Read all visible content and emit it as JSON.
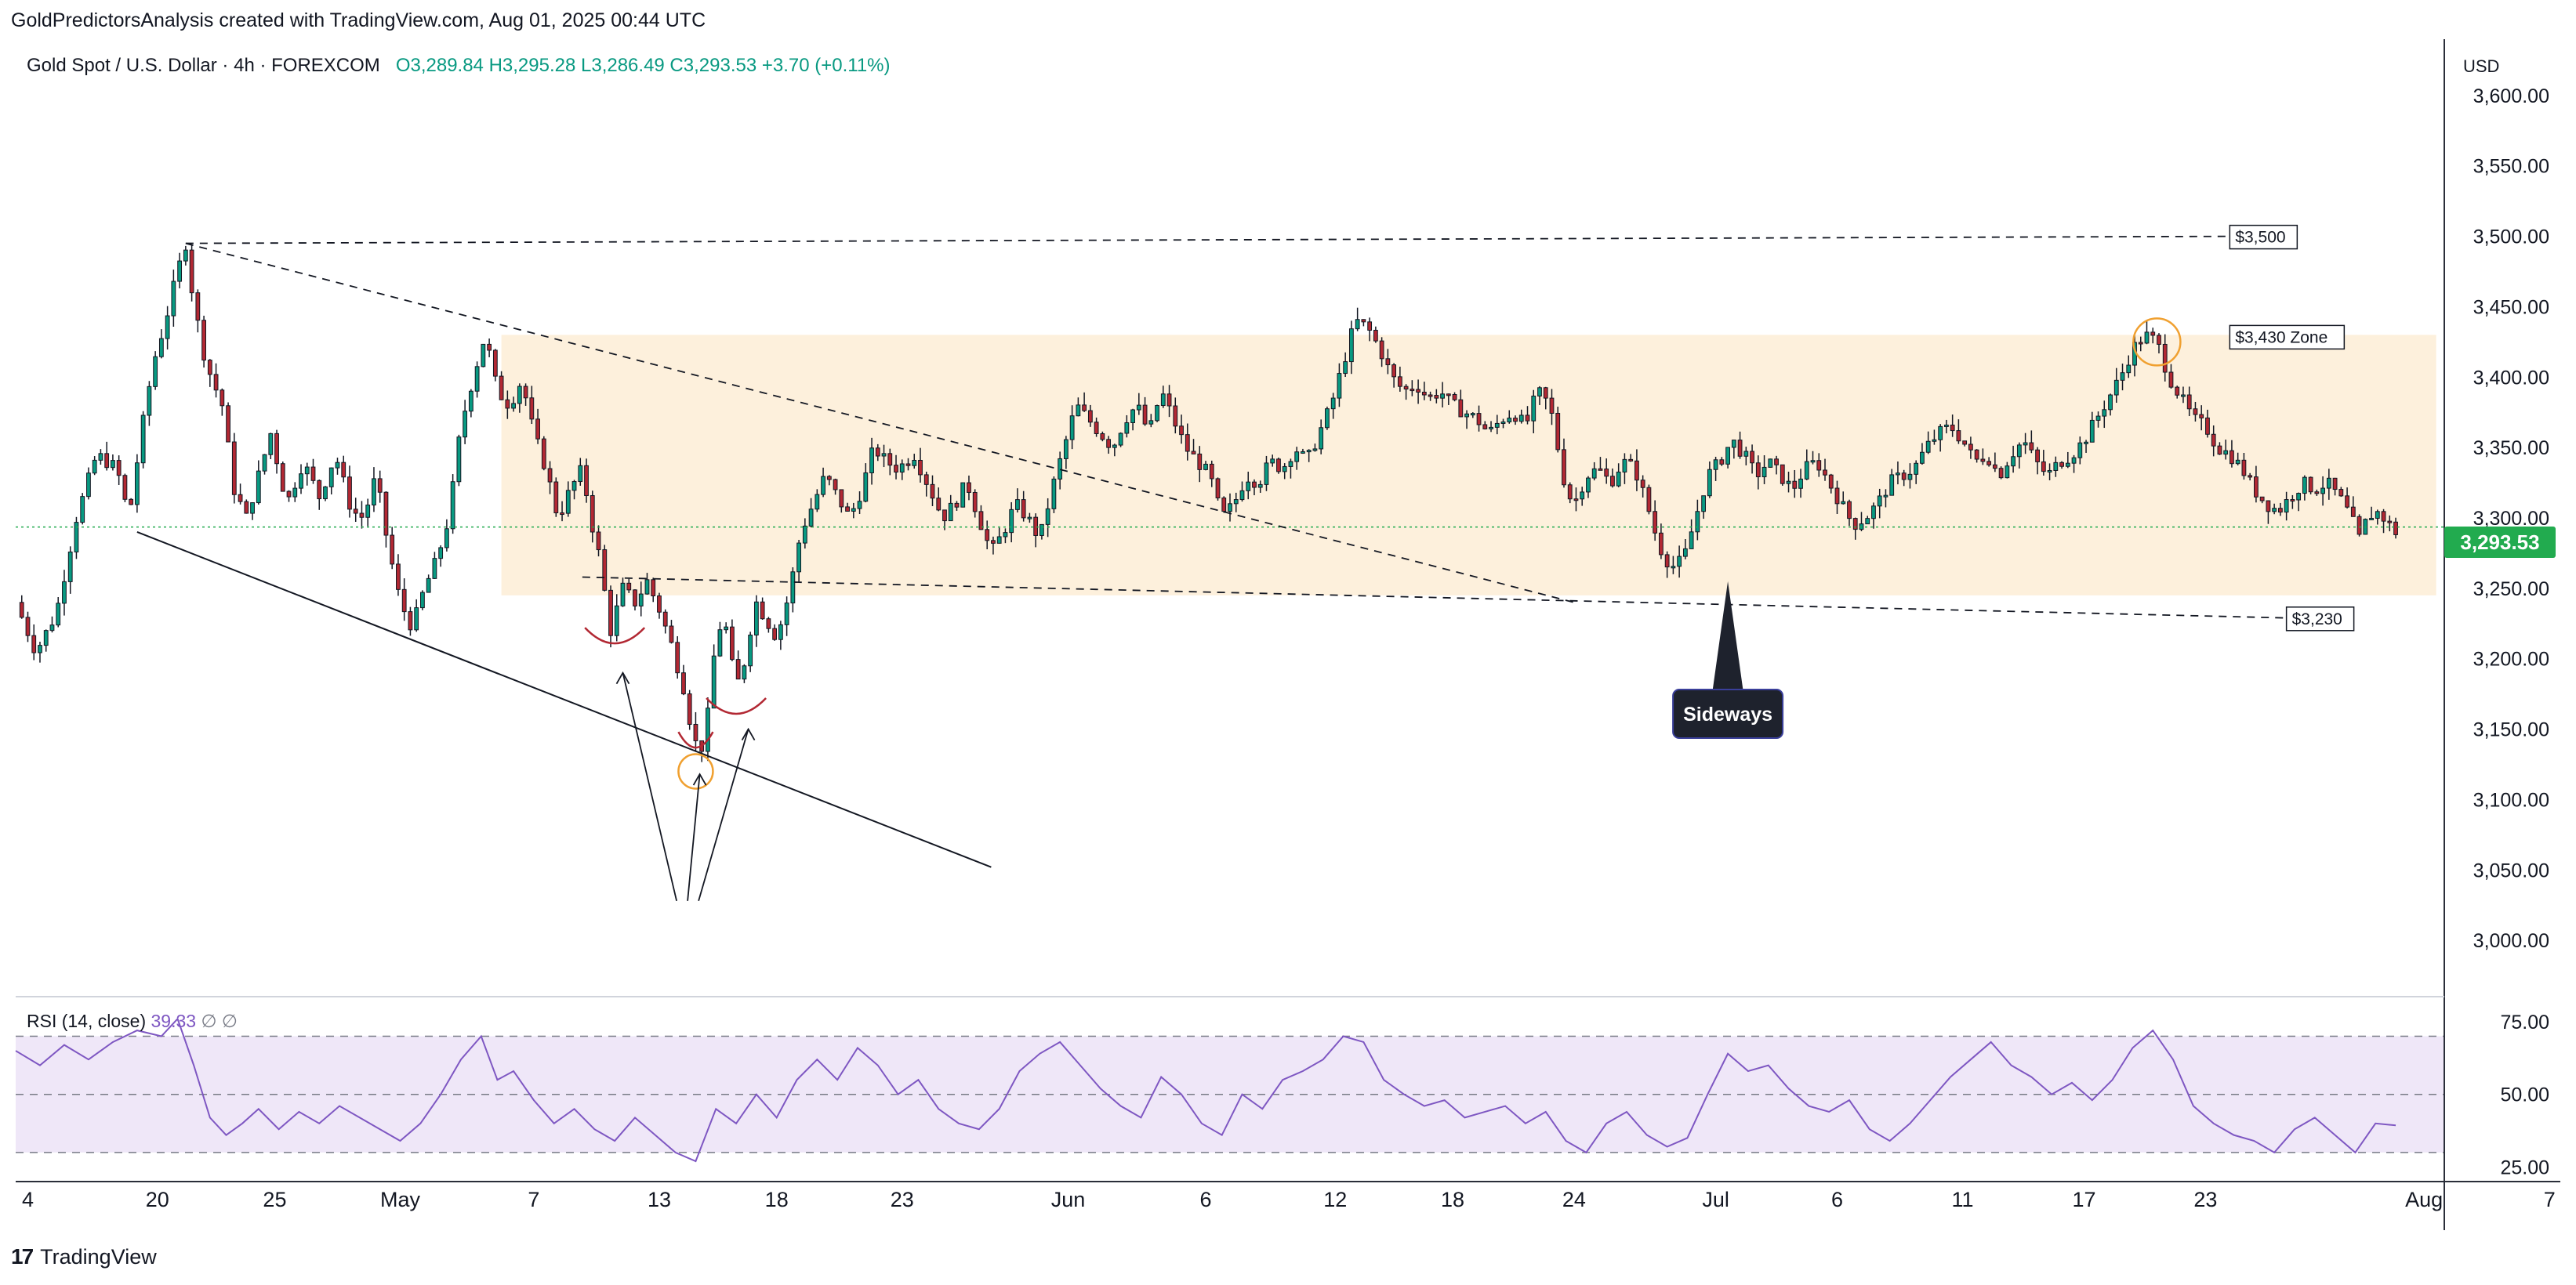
{
  "header": {
    "caption": "GoldPredictorsAnalysis created with TradingView.com, Aug 01, 2025 00:44 UTC"
  },
  "legend": {
    "symbol": "Gold Spot / U.S. Dollar · 4h · FOREXCOM",
    "ohlc": "O3,289.84  H3,295.28  L3,286.49  C3,293.53  +3.70 (+0.11%)"
  },
  "rsi_legend": {
    "label": "RSI (14, close)",
    "value": "39.33",
    "extra": "∅  ∅"
  },
  "footer": {
    "brand": "TradingView",
    "logo_icon": "tradingview-logo-icon"
  },
  "price_scale": {
    "currency": "USD",
    "last_price": "3,293.53"
  },
  "colors": {
    "up": "#089981",
    "up_fill": "#26a269",
    "down": "#b22833",
    "rsi": "#7e57c2",
    "zone": "#fdf0dc",
    "rsi_band": "#efe7f8",
    "last_price": "#22ab4f",
    "highlight_circle": "#f0a030"
  },
  "annotations": {
    "label_3500": "$3,500",
    "label_3430": "$3,430 Zone",
    "label_3230": "$3,230",
    "sideways": "Sideways"
  },
  "chart_data": [
    {
      "type": "candlestick",
      "title": "Gold Spot / U.S. Dollar · 4h · FOREXCOM",
      "timeframe": "4h",
      "x_ticks": [
        "4",
        "20",
        "25",
        "May",
        "7",
        "13",
        "18",
        "23",
        "Jun",
        "6",
        "12",
        "18",
        "24",
        "Jul",
        "6",
        "11",
        "17",
        "23",
        "Aug",
        "7"
      ],
      "y_ticks": [
        "3,000.00",
        "3,050.00",
        "3,100.00",
        "3,150.00",
        "3,200.00",
        "3,250.00",
        "3,300.00",
        "3,350.00",
        "3,400.00",
        "3,450.00",
        "3,500.00",
        "3,550.00",
        "3,600.00"
      ],
      "ylim": [
        2960,
        3640
      ],
      "close_path": [
        [
          0,
          3240
        ],
        [
          10,
          3205
        ],
        [
          20,
          3232
        ],
        [
          30,
          3300
        ],
        [
          40,
          3345
        ],
        [
          50,
          3335
        ],
        [
          56,
          3300
        ],
        [
          62,
          3360
        ],
        [
          68,
          3410
        ],
        [
          74,
          3440
        ],
        [
          80,
          3475
        ],
        [
          84,
          3495
        ],
        [
          88,
          3452
        ],
        [
          94,
          3410
        ],
        [
          102,
          3380
        ],
        [
          108,
          3320
        ],
        [
          114,
          3300
        ],
        [
          120,
          3330
        ],
        [
          126,
          3360
        ],
        [
          134,
          3310
        ],
        [
          142,
          3340
        ],
        [
          150,
          3315
        ],
        [
          158,
          3345
        ],
        [
          166,
          3305
        ],
        [
          172,
          3300
        ],
        [
          178,
          3330
        ],
        [
          184,
          3280
        ],
        [
          190,
          3240
        ],
        [
          196,
          3222
        ],
        [
          202,
          3250
        ],
        [
          208,
          3270
        ],
        [
          214,
          3300
        ],
        [
          220,
          3365
        ],
        [
          226,
          3400
        ],
        [
          232,
          3430
        ],
        [
          238,
          3390
        ],
        [
          244,
          3380
        ],
        [
          250,
          3398
        ],
        [
          256,
          3360
        ],
        [
          262,
          3335
        ],
        [
          268,
          3300
        ],
        [
          274,
          3320
        ],
        [
          280,
          3335
        ],
        [
          284,
          3300
        ],
        [
          288,
          3275
        ],
        [
          294,
          3220
        ],
        [
          300,
          3250
        ],
        [
          306,
          3240
        ],
        [
          312,
          3255
        ],
        [
          318,
          3235
        ],
        [
          324,
          3210
        ],
        [
          330,
          3180
        ],
        [
          334,
          3150
        ],
        [
          338,
          3130
        ],
        [
          342,
          3160
        ],
        [
          346,
          3215
        ],
        [
          350,
          3230
        ],
        [
          354,
          3195
        ],
        [
          358,
          3180
        ],
        [
          362,
          3215
        ],
        [
          366,
          3240
        ],
        [
          370,
          3230
        ],
        [
          376,
          3215
        ],
        [
          382,
          3245
        ],
        [
          388,
          3290
        ],
        [
          394,
          3310
        ],
        [
          400,
          3330
        ],
        [
          406,
          3315
        ],
        [
          412,
          3300
        ],
        [
          418,
          3320
        ],
        [
          424,
          3350
        ],
        [
          430,
          3340
        ],
        [
          436,
          3335
        ],
        [
          444,
          3345
        ],
        [
          452,
          3320
        ],
        [
          458,
          3300
        ],
        [
          464,
          3310
        ],
        [
          470,
          3325
        ],
        [
          476,
          3300
        ],
        [
          482,
          3275
        ],
        [
          488,
          3290
        ],
        [
          494,
          3310
        ],
        [
          500,
          3300
        ],
        [
          506,
          3285
        ],
        [
          512,
          3320
        ],
        [
          518,
          3350
        ],
        [
          524,
          3380
        ],
        [
          530,
          3370
        ],
        [
          536,
          3360
        ],
        [
          542,
          3350
        ],
        [
          548,
          3370
        ],
        [
          554,
          3380
        ],
        [
          560,
          3360
        ],
        [
          566,
          3390
        ],
        [
          572,
          3370
        ],
        [
          578,
          3350
        ],
        [
          584,
          3340
        ],
        [
          590,
          3330
        ],
        [
          596,
          3300
        ],
        [
          602,
          3310
        ],
        [
          608,
          3330
        ],
        [
          614,
          3325
        ],
        [
          620,
          3340
        ],
        [
          626,
          3335
        ],
        [
          632,
          3350
        ],
        [
          638,
          3340
        ],
        [
          644,
          3360
        ],
        [
          650,
          3380
        ],
        [
          656,
          3410
        ],
        [
          662,
          3440
        ],
        [
          668,
          3435
        ],
        [
          674,
          3420
        ],
        [
          680,
          3400
        ],
        [
          686,
          3390
        ],
        [
          692,
          3395
        ],
        [
          698,
          3385
        ],
        [
          704,
          3390
        ],
        [
          710,
          3380
        ],
        [
          716,
          3375
        ],
        [
          722,
          3370
        ],
        [
          728,
          3360
        ],
        [
          734,
          3370
        ],
        [
          740,
          3375
        ],
        [
          746,
          3365
        ],
        [
          752,
          3390
        ],
        [
          758,
          3380
        ],
        [
          762,
          3350
        ],
        [
          766,
          3320
        ],
        [
          770,
          3310
        ],
        [
          776,
          3330
        ],
        [
          782,
          3335
        ],
        [
          788,
          3325
        ],
        [
          794,
          3340
        ],
        [
          800,
          3335
        ],
        [
          806,
          3310
        ],
        [
          812,
          3280
        ],
        [
          818,
          3265
        ],
        [
          824,
          3270
        ],
        [
          830,
          3300
        ],
        [
          836,
          3330
        ],
        [
          842,
          3340
        ],
        [
          848,
          3355
        ],
        [
          854,
          3345
        ],
        [
          860,
          3330
        ],
        [
          866,
          3340
        ],
        [
          872,
          3330
        ],
        [
          878,
          3320
        ],
        [
          884,
          3335
        ],
        [
          890,
          3340
        ],
        [
          896,
          3325
        ],
        [
          902,
          3310
        ],
        [
          908,
          3295
        ],
        [
          914,
          3300
        ],
        [
          920,
          3310
        ],
        [
          926,
          3325
        ],
        [
          932,
          3330
        ],
        [
          938,
          3335
        ],
        [
          944,
          3350
        ],
        [
          950,
          3360
        ],
        [
          956,
          3365
        ],
        [
          962,
          3355
        ],
        [
          968,
          3340
        ],
        [
          974,
          3345
        ],
        [
          980,
          3330
        ],
        [
          986,
          3345
        ],
        [
          992,
          3355
        ],
        [
          998,
          3340
        ],
        [
          1004,
          3330
        ],
        [
          1010,
          3340
        ],
        [
          1016,
          3345
        ],
        [
          1022,
          3355
        ],
        [
          1028,
          3370
        ],
        [
          1034,
          3385
        ],
        [
          1040,
          3400
        ],
        [
          1046,
          3420
        ],
        [
          1052,
          3430
        ],
        [
          1058,
          3425
        ],
        [
          1064,
          3400
        ],
        [
          1070,
          3385
        ],
        [
          1076,
          3370
        ],
        [
          1082,
          3365
        ],
        [
          1088,
          3350
        ],
        [
          1094,
          3345
        ],
        [
          1100,
          3335
        ],
        [
          1106,
          3320
        ],
        [
          1112,
          3310
        ],
        [
          1118,
          3305
        ],
        [
          1124,
          3315
        ],
        [
          1130,
          3325
        ],
        [
          1136,
          3320
        ],
        [
          1142,
          3325
        ],
        [
          1148,
          3315
        ],
        [
          1154,
          3300
        ],
        [
          1158,
          3285
        ],
        [
          1162,
          3300
        ],
        [
          1166,
          3305
        ],
        [
          1170,
          3300
        ],
        [
          1176,
          3290
        ]
      ],
      "last_close": 3293.53,
      "resistance_3500": 3500,
      "resistance_zone_3430": 3430,
      "support_3230": 3230,
      "consolidation_zone": [
        3245,
        3430
      ],
      "annotations": [
        "$3,500",
        "$3,430 Zone",
        "$3,230",
        "Sideways"
      ]
    },
    {
      "type": "line",
      "title": "RSI (14, close)",
      "y_ticks": [
        "25.00",
        "50.00",
        "75.00"
      ],
      "ylim": [
        20,
        82
      ],
      "bands": [
        30,
        50,
        70
      ],
      "last_value": 39.33,
      "values": [
        [
          0,
          65
        ],
        [
          12,
          60
        ],
        [
          24,
          67
        ],
        [
          36,
          62
        ],
        [
          48,
          68
        ],
        [
          60,
          72
        ],
        [
          72,
          70
        ],
        [
          80,
          76
        ],
        [
          88,
          60
        ],
        [
          96,
          42
        ],
        [
          104,
          36
        ],
        [
          112,
          40
        ],
        [
          120,
          45
        ],
        [
          130,
          38
        ],
        [
          140,
          44
        ],
        [
          150,
          40
        ],
        [
          160,
          46
        ],
        [
          170,
          42
        ],
        [
          180,
          38
        ],
        [
          190,
          34
        ],
        [
          200,
          40
        ],
        [
          210,
          50
        ],
        [
          220,
          62
        ],
        [
          230,
          70
        ],
        [
          238,
          55
        ],
        [
          246,
          58
        ],
        [
          256,
          48
        ],
        [
          266,
          40
        ],
        [
          276,
          45
        ],
        [
          286,
          38
        ],
        [
          296,
          34
        ],
        [
          306,
          42
        ],
        [
          316,
          36
        ],
        [
          326,
          30
        ],
        [
          336,
          27
        ],
        [
          346,
          45
        ],
        [
          356,
          40
        ],
        [
          366,
          50
        ],
        [
          376,
          42
        ],
        [
          386,
          55
        ],
        [
          396,
          62
        ],
        [
          406,
          55
        ],
        [
          416,
          66
        ],
        [
          426,
          60
        ],
        [
          436,
          50
        ],
        [
          446,
          55
        ],
        [
          456,
          45
        ],
        [
          466,
          40
        ],
        [
          476,
          38
        ],
        [
          486,
          45
        ],
        [
          496,
          58
        ],
        [
          506,
          64
        ],
        [
          516,
          68
        ],
        [
          526,
          60
        ],
        [
          536,
          52
        ],
        [
          546,
          46
        ],
        [
          556,
          42
        ],
        [
          566,
          56
        ],
        [
          576,
          50
        ],
        [
          586,
          40
        ],
        [
          596,
          36
        ],
        [
          606,
          50
        ],
        [
          616,
          45
        ],
        [
          626,
          55
        ],
        [
          636,
          58
        ],
        [
          646,
          62
        ],
        [
          656,
          70
        ],
        [
          666,
          68
        ],
        [
          676,
          55
        ],
        [
          686,
          50
        ],
        [
          696,
          46
        ],
        [
          706,
          48
        ],
        [
          716,
          42
        ],
        [
          726,
          44
        ],
        [
          736,
          46
        ],
        [
          746,
          40
        ],
        [
          756,
          44
        ],
        [
          766,
          34
        ],
        [
          776,
          30
        ],
        [
          786,
          40
        ],
        [
          796,
          44
        ],
        [
          806,
          36
        ],
        [
          816,
          32
        ],
        [
          826,
          35
        ],
        [
          836,
          50
        ],
        [
          846,
          64
        ],
        [
          856,
          58
        ],
        [
          866,
          60
        ],
        [
          876,
          52
        ],
        [
          886,
          46
        ],
        [
          896,
          44
        ],
        [
          906,
          48
        ],
        [
          916,
          38
        ],
        [
          926,
          34
        ],
        [
          936,
          40
        ],
        [
          946,
          48
        ],
        [
          956,
          56
        ],
        [
          966,
          62
        ],
        [
          976,
          68
        ],
        [
          986,
          60
        ],
        [
          996,
          56
        ],
        [
          1006,
          50
        ],
        [
          1016,
          54
        ],
        [
          1026,
          48
        ],
        [
          1036,
          55
        ],
        [
          1046,
          66
        ],
        [
          1056,
          72
        ],
        [
          1066,
          62
        ],
        [
          1076,
          46
        ],
        [
          1086,
          40
        ],
        [
          1096,
          36
        ],
        [
          1106,
          34
        ],
        [
          1116,
          30
        ],
        [
          1126,
          38
        ],
        [
          1136,
          42
        ],
        [
          1146,
          36
        ],
        [
          1156,
          30
        ],
        [
          1166,
          40
        ],
        [
          1176,
          39.33
        ]
      ]
    }
  ]
}
